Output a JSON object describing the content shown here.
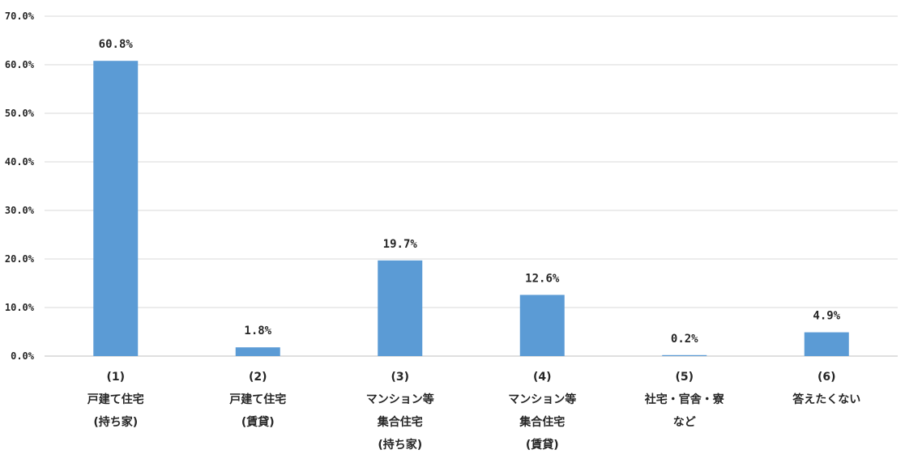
{
  "chart_data": {
    "type": "bar",
    "categories": [
      [
        "(1)",
        "戸建て住宅",
        "(持ち家)"
      ],
      [
        "(2)",
        "戸建て住宅",
        "(賃貸)"
      ],
      [
        "(3)",
        "マンション等",
        "集合住宅",
        "(持ち家)"
      ],
      [
        "(4)",
        "マンション等",
        "集合住宅",
        "(賃貸)"
      ],
      [
        "(5)",
        "社宅・官舎・寮",
        "など"
      ],
      [
        "(6)",
        "答えたくない"
      ]
    ],
    "values": [
      60.8,
      1.8,
      19.7,
      12.6,
      0.2,
      4.9
    ],
    "data_labels": [
      "60.8%",
      "1.8%",
      "19.7%",
      "12.6%",
      "0.2%",
      "4.9%"
    ],
    "y_ticks": [
      "0.0%",
      "10.0%",
      "20.0%",
      "30.0%",
      "40.0%",
      "50.0%",
      "60.0%",
      "70.0%"
    ],
    "ylim": [
      0,
      70
    ],
    "grid": true,
    "legend": "none",
    "colors": {
      "bar": "#5b9bd5"
    }
  }
}
